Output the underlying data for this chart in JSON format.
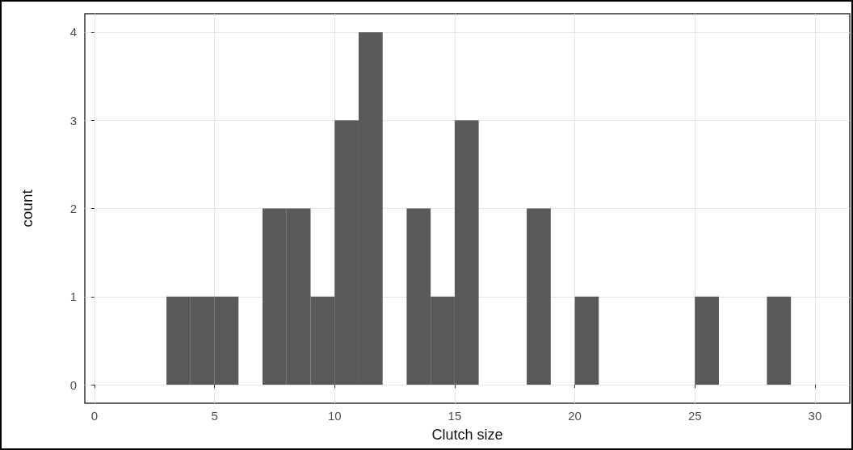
{
  "chart_data": {
    "type": "histogram",
    "xlabel": "Clutch size",
    "ylabel": "count",
    "bins": [
      3,
      4,
      5,
      6,
      7,
      8,
      9,
      10,
      11,
      12,
      13,
      14,
      15,
      16,
      17,
      18,
      19,
      20,
      21,
      22,
      23,
      24,
      25,
      26,
      27,
      28,
      29
    ],
    "values": [
      1,
      1,
      1,
      0,
      2,
      2,
      1,
      3,
      4,
      0,
      2,
      1,
      3,
      0,
      0,
      2,
      0,
      1,
      0,
      0,
      0,
      0,
      1,
      0,
      0,
      1
    ],
    "color": "#595959",
    "xlim": [
      -0.4,
      31.45
    ],
    "xticks": [
      0,
      5,
      10,
      15,
      20,
      25,
      30
    ],
    "ylim": [
      -0.21,
      4.21
    ],
    "yticks": [
      0,
      1,
      2,
      3,
      4
    ],
    "grid": true
  }
}
